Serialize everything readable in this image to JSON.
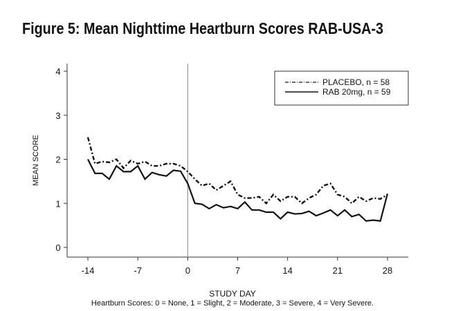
{
  "chart_data": {
    "type": "line",
    "title": "Figure 5: Mean Nighttime Heartburn Scores RAB-USA-3",
    "xlabel": "STUDY DAY",
    "ylabel": "MEAN SCORE",
    "footnote": "Heartburn Scores: 0 = None, 1 = Slight, 2 = Moderate, 3 = Severe, 4 = Very Severe.",
    "xlim": [
      -14,
      28
    ],
    "ylim": [
      0,
      4
    ],
    "xticks": [
      -14,
      -7,
      0,
      7,
      14,
      21,
      28
    ],
    "yticks": [
      0,
      1,
      2,
      3,
      4
    ],
    "reference_line_x": 0,
    "legend_position": "top-right",
    "x": [
      -14,
      -13,
      -12,
      -11,
      -10,
      -9,
      -8,
      -7,
      -6,
      -5,
      -4,
      -3,
      -2,
      -1,
      0,
      1,
      2,
      3,
      4,
      5,
      6,
      7,
      8,
      9,
      10,
      11,
      12,
      13,
      14,
      15,
      16,
      17,
      18,
      19,
      20,
      21,
      22,
      23,
      24,
      25,
      26,
      27,
      28
    ],
    "series": [
      {
        "name": "PLACEBO, n = 58",
        "style": "dash-dot",
        "values": [
          2.5,
          1.9,
          1.95,
          1.93,
          2.0,
          1.8,
          1.97,
          1.9,
          1.95,
          1.85,
          1.85,
          1.9,
          1.9,
          1.85,
          1.72,
          1.55,
          1.4,
          1.45,
          1.3,
          1.4,
          1.5,
          1.2,
          1.12,
          1.12,
          1.15,
          1.0,
          1.2,
          1.05,
          1.15,
          1.15,
          1.0,
          1.12,
          1.2,
          1.4,
          1.45,
          1.2,
          1.15,
          1.0,
          1.15,
          1.05,
          1.12,
          1.1,
          1.2
        ]
      },
      {
        "name": "RAB 20mg, n = 59",
        "style": "solid",
        "values": [
          2.0,
          1.68,
          1.68,
          1.55,
          1.85,
          1.72,
          1.72,
          1.85,
          1.55,
          1.7,
          1.65,
          1.62,
          1.75,
          1.73,
          1.45,
          1.0,
          0.98,
          0.88,
          0.97,
          0.9,
          0.93,
          0.88,
          1.03,
          0.85,
          0.85,
          0.8,
          0.8,
          0.65,
          0.8,
          0.76,
          0.77,
          0.82,
          0.72,
          0.78,
          0.85,
          0.72,
          0.85,
          0.7,
          0.75,
          0.6,
          0.62,
          0.6,
          1.22
        ]
      }
    ]
  }
}
